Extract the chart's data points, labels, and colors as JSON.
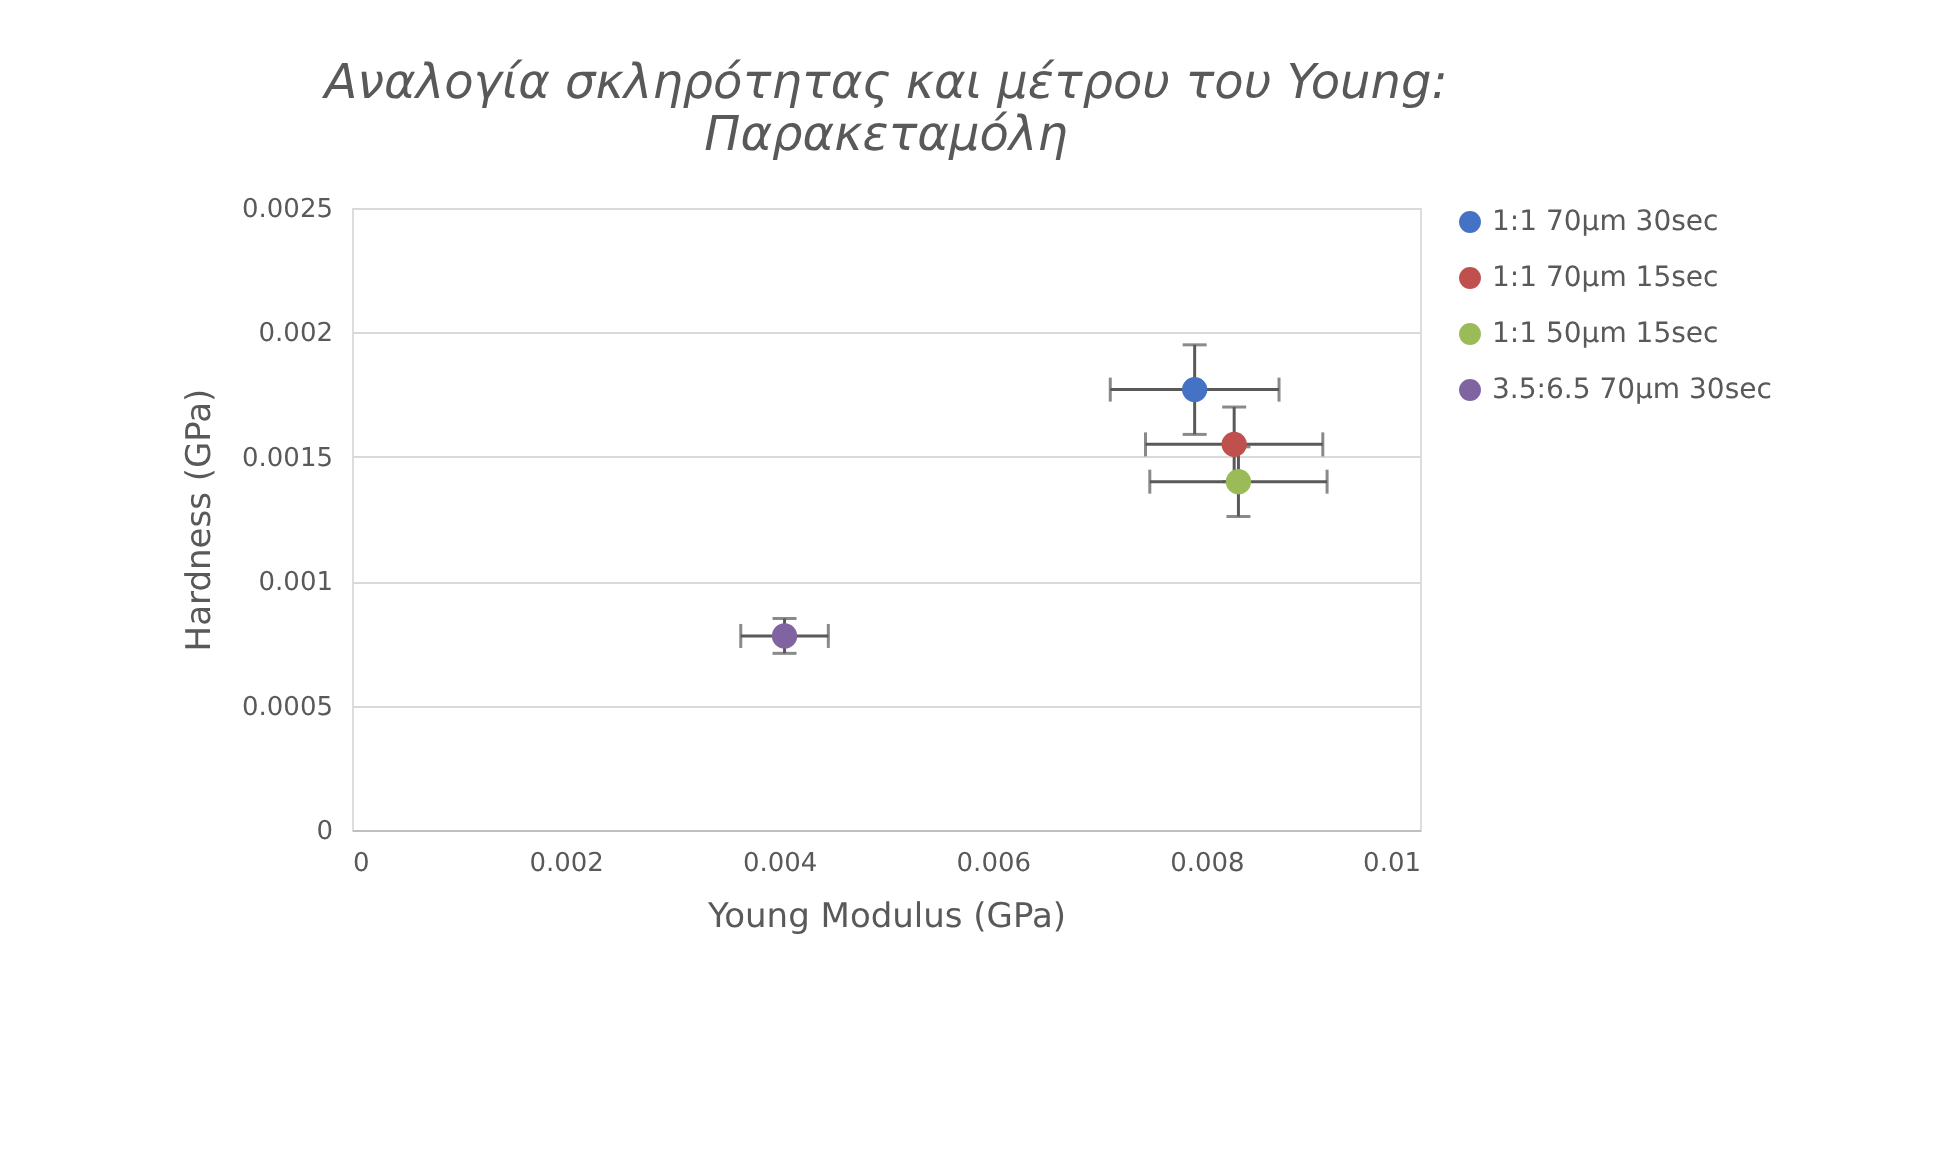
{
  "chart_data": {
    "type": "scatter",
    "title": "Αναλογία σκληρότητας και μέτρου του Young: Παρακεταμόλη",
    "xlabel": "Young Modulus (GPa)",
    "ylabel": "Hardness (GPa)",
    "xlim": [
      0,
      0.01
    ],
    "xticks": [
      0,
      0.002,
      0.004,
      0.006,
      0.008,
      0.01
    ],
    "ylim": [
      0,
      0.0025
    ],
    "yticks": [
      0,
      0.0005,
      0.001,
      0.0015,
      0.002,
      0.0025
    ],
    "grid": "y",
    "legend": "right",
    "marker": "circle",
    "series": [
      {
        "name": "1:1 70μm 30sec",
        "color": "#4472c4",
        "x": [
          0.00789
        ],
        "values": [
          0.00177
        ],
        "errors": [
          0.00018
        ],
        "xerrors": [
          0.00079
        ]
      },
      {
        "name": "1:1 70μm 15sec",
        "color": "#c0504d",
        "x": [
          0.00826
        ],
        "values": [
          0.00155
        ],
        "errors": [
          0.00015
        ],
        "xerrors": [
          0.00083
        ]
      },
      {
        "name": "1:1 50μm 15sec",
        "color": "#9bbb59",
        "x": [
          0.0083
        ],
        "values": [
          0.0014
        ],
        "errors": [
          0.00014
        ],
        "xerrors": [
          0.00083
        ]
      },
      {
        "name": "3.5:6.5 70μm 30sec",
        "color": "#8064a2",
        "x": [
          0.00405
        ],
        "values": [
          0.00078
        ],
        "errors": [
          7e-05
        ],
        "xerrors": [
          0.00041
        ]
      }
    ]
  }
}
